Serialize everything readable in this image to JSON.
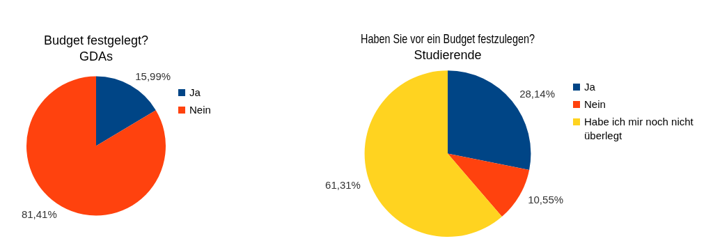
{
  "chart_data": [
    {
      "type": "pie",
      "title": "Budget festgelegt?",
      "subtitle": "GDAs",
      "categories": [
        "Ja",
        "Nein"
      ],
      "values": [
        15.99,
        81.41
      ],
      "colors": [
        "#004586",
        "#ff420e"
      ],
      "value_labels": [
        "15,99%",
        "81,41%"
      ],
      "legend": "right"
    },
    {
      "type": "pie",
      "title": "Haben Sie vor ein Budget festzulegen?",
      "subtitle": "Studierende",
      "categories": [
        "Ja",
        "Nein",
        "Habe ich mir noch nicht überlegt"
      ],
      "values": [
        28.14,
        10.55,
        61.31
      ],
      "colors": [
        "#004586",
        "#ff420e",
        "#ffd320"
      ],
      "value_labels": [
        "28,14%",
        "10,55%",
        "61,31%"
      ],
      "legend": "right"
    }
  ]
}
